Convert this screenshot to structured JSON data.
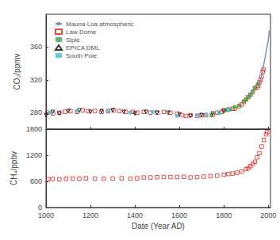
{
  "chart_data": [
    {
      "type": "scatter",
      "ylabel": "CO₂/ppmv",
      "xlim": [
        1000,
        2010
      ],
      "xticks": [
        1000,
        1200,
        1400,
        1600,
        1800,
        2000
      ],
      "ylim": [
        260,
        400
      ],
      "yticks": [
        280,
        320,
        360
      ],
      "grid": false,
      "legend": "upper left",
      "tick_labels": "y",
      "series": [
        {
          "name": "Mauna Loa atmospheric",
          "type": "line",
          "line_style": "solid",
          "color": "#7f92b4",
          "x": [
            1958,
            1965,
            1970,
            1975,
            1980,
            1985,
            1990,
            1995,
            2000,
            2005
          ],
          "values": [
            315,
            320,
            325,
            331,
            339,
            346,
            354,
            361,
            369,
            380
          ]
        },
        {
          "name": "Law Dome",
          "marker": "square-open",
          "color": "#e0201b",
          "x": [
            1006,
            1032,
            1060,
            1085,
            1110,
            1140,
            1165,
            1190,
            1220,
            1250,
            1280,
            1305,
            1330,
            1360,
            1390,
            1410,
            1440,
            1470,
            1500,
            1530,
            1560,
            1590,
            1610,
            1630,
            1650,
            1680,
            1700,
            1720,
            1750,
            1770,
            1790,
            1800,
            1820,
            1840,
            1850,
            1870,
            1880,
            1890,
            1900,
            1910,
            1920,
            1930,
            1940,
            1950,
            1955,
            1960,
            1965,
            1970,
            1975,
            1978
          ],
          "values": [
            280,
            279,
            280,
            281,
            282,
            281,
            283,
            282,
            282,
            281,
            282,
            283,
            282,
            281,
            281,
            280,
            281,
            280,
            280,
            281,
            280,
            279,
            277,
            276,
            277,
            276,
            277,
            277,
            277,
            280,
            281,
            283,
            284,
            285,
            285,
            288,
            290,
            293,
            296,
            299,
            302,
            305,
            310,
            311,
            313,
            317,
            320,
            324,
            330,
            333
          ]
        },
        {
          "name": "Siple",
          "marker": "square",
          "color": "#3aa84a",
          "x": [
            1744,
            1780,
            1810,
            1830,
            1850,
            1870,
            1890,
            1900,
            1910,
            1920,
            1930,
            1940,
            1953
          ],
          "values": [
            277,
            280,
            283,
            284,
            287,
            289,
            294,
            296,
            299,
            302,
            306,
            310,
            315
          ]
        },
        {
          "name": "EPICA DML",
          "marker": "triangle-down-open",
          "color": "#000000",
          "x": [
            1000,
            1030,
            1060,
            1100,
            1150,
            1200,
            1250,
            1300,
            1350,
            1400,
            1450,
            1500,
            1550,
            1600,
            1650,
            1700,
            1750,
            1800
          ],
          "values": [
            277,
            281,
            279,
            282,
            283,
            281,
            282,
            283,
            281,
            279,
            281,
            280,
            280,
            278,
            276,
            277,
            279,
            282
          ]
        },
        {
          "name": "South Pole",
          "marker": "square",
          "color": "#3cc0d2",
          "x": [
            1020,
            1140,
            1280,
            1380,
            1480,
            1590,
            1680,
            1720,
            1780,
            1820
          ],
          "values": [
            280,
            282,
            282,
            280,
            281,
            276,
            277,
            278,
            280,
            284
          ]
        }
      ]
    },
    {
      "type": "scatter",
      "xlabel": "Date (Year AD)",
      "ylabel": "CH₄/ppbv",
      "xlim": [
        1000,
        2010
      ],
      "xticks": [
        1000,
        1200,
        1400,
        1600,
        1800,
        2000
      ],
      "ylim": [
        0,
        1800
      ],
      "yticks": [
        0,
        600,
        1200,
        1800
      ],
      "grid": false,
      "series": [
        {
          "marker": "square-open",
          "color": "#e0201b",
          "x": [
            1010,
            1030,
            1060,
            1090,
            1120,
            1150,
            1180,
            1220,
            1260,
            1300,
            1340,
            1380,
            1410,
            1440,
            1470,
            1500,
            1530,
            1560,
            1590,
            1620,
            1650,
            1680,
            1710,
            1740,
            1770,
            1800,
            1820,
            1840,
            1860,
            1880,
            1900,
            1910,
            1920,
            1930,
            1940,
            1950,
            1960,
            1970,
            1980,
            1990,
            1995
          ],
          "values": [
            650,
            655,
            650,
            660,
            665,
            660,
            670,
            665,
            660,
            665,
            670,
            660,
            670,
            690,
            690,
            695,
            700,
            700,
            700,
            705,
            690,
            700,
            710,
            720,
            730,
            750,
            770,
            780,
            800,
            830,
            880,
            900,
            950,
            1000,
            1050,
            1150,
            1250,
            1400,
            1550,
            1680,
            1730
          ]
        }
      ]
    }
  ]
}
